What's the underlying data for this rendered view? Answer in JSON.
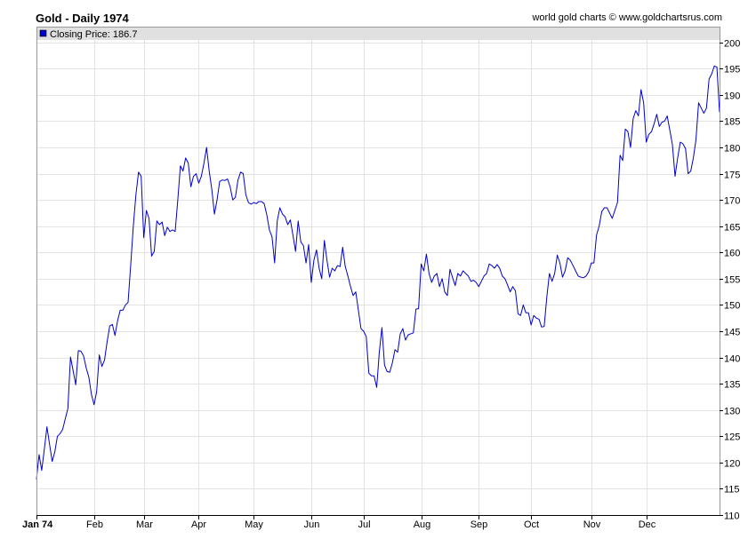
{
  "header": {
    "title": "Gold - Daily 1974",
    "credit": "world gold charts © www.goldchartsrus.com"
  },
  "colors": {
    "line": "#0000cc",
    "grid": "#e3e3e3",
    "legend_bg": "#e0e0e0"
  },
  "chart_data": {
    "type": "line",
    "legend": {
      "label": "Closing Price: 186.7",
      "placement": "top-left"
    },
    "ylim": [
      110,
      203
    ],
    "y_ticks": [
      110,
      115,
      120,
      125,
      130,
      135,
      140,
      145,
      150,
      155,
      160,
      165,
      170,
      175,
      180,
      185,
      190,
      195,
      200
    ],
    "x_ticks": [
      {
        "label": "Jan 74",
        "index": 0
      },
      {
        "label": "Feb",
        "index": 22
      },
      {
        "label": "Mar",
        "index": 41
      },
      {
        "label": "Apr",
        "index": 62
      },
      {
        "label": "May",
        "index": 83
      },
      {
        "label": "Jun",
        "index": 105
      },
      {
        "label": "Jul",
        "index": 125
      },
      {
        "label": "Aug",
        "index": 147
      },
      {
        "label": "Sep",
        "index": 169
      },
      {
        "label": "Oct",
        "index": 189
      },
      {
        "label": "Nov",
        "index": 212
      },
      {
        "label": "Dec",
        "index": 233
      }
    ],
    "series": [
      {
        "values": [
          116.8,
          121.5,
          118.5,
          122.5,
          126.8,
          123.5,
          120.2,
          122.0,
          125.0,
          125.5,
          126.3,
          128.3,
          130.3,
          140.1,
          137.5,
          134.8,
          141.3,
          141.2,
          140.3,
          138.0,
          136.3,
          133.0,
          131.0,
          133.5,
          140.5,
          138.3,
          139.5,
          143.0,
          146.0,
          146.3,
          144.2,
          147.0,
          149.0,
          149.0,
          150.0,
          150.5,
          157.5,
          165.0,
          171.0,
          175.3,
          174.5,
          162.8,
          168.0,
          166.5,
          159.3,
          160.2,
          166.0,
          165.3,
          165.8,
          163.2,
          164.8,
          164.0,
          164.3,
          164.0,
          170.0,
          176.5,
          175.5,
          178.0,
          177.0,
          172.5,
          174.5,
          175.0,
          173.2,
          174.5,
          177.0,
          180.0,
          175.5,
          172.0,
          167.3,
          170.0,
          173.5,
          173.8,
          173.7,
          174.0,
          172.5,
          170.0,
          170.5,
          173.8,
          175.3,
          175.0,
          171.0,
          169.5,
          169.2,
          169.5,
          169.3,
          169.7,
          169.7,
          169.3,
          167.2,
          164.3,
          163.0,
          158.0,
          166.0,
          168.5,
          167.3,
          166.8,
          165.3,
          166.2,
          163.3,
          160.2,
          166.0,
          162.0,
          161.3,
          158.0,
          161.5,
          154.3,
          158.5,
          160.5,
          157.0,
          155.0,
          162.3,
          158.5,
          155.3,
          157.0,
          156.5,
          157.5,
          157.3,
          161.0,
          157.3,
          155.5,
          153.5,
          151.8,
          152.5,
          149.0,
          145.5,
          145.0,
          144.0,
          137.0,
          136.5,
          136.5,
          134.3,
          141.0,
          145.7,
          138.5,
          137.3,
          137.2,
          139.0,
          141.5,
          141.0,
          144.5,
          145.5,
          143.3,
          144.3,
          144.5,
          144.7,
          149.2,
          149.3,
          157.8,
          156.5,
          159.7,
          156.0,
          154.3,
          155.5,
          156.0,
          153.5,
          155.0,
          152.5,
          151.8,
          156.8,
          155.2,
          153.7,
          156.0,
          155.5,
          156.5,
          156.0,
          155.5,
          154.5,
          154.7,
          154.3,
          153.5,
          154.5,
          155.5,
          156.0,
          157.8,
          157.5,
          157.0,
          157.7,
          157.0,
          155.5,
          155.0,
          153.8,
          152.5,
          153.5,
          152.7,
          148.3,
          148.0,
          150.0,
          148.5,
          148.5,
          146.2,
          148.0,
          147.5,
          147.3,
          145.8,
          145.9,
          151.5,
          156.0,
          154.5,
          156.0,
          159.5,
          158.0,
          155.3,
          156.5,
          159.0,
          158.5,
          157.5,
          156.5,
          155.5,
          155.3,
          155.2,
          155.5,
          156.3,
          158.0,
          158.0,
          163.3,
          165.0,
          167.8,
          168.5,
          168.5,
          167.5,
          166.5,
          168.0,
          169.5,
          178.5,
          177.5,
          183.5,
          183.0,
          180.0,
          185.5,
          187.0,
          186.0,
          191.0,
          188.5,
          181.0,
          182.5,
          183.0,
          184.5,
          186.3,
          184.0,
          184.8,
          185.0,
          186.0,
          183.3,
          180.5,
          174.5,
          178.0,
          181.0,
          180.7,
          179.8,
          175.0,
          175.5,
          178.0,
          181.5,
          188.5,
          187.5,
          186.5,
          187.5,
          193.0,
          194.0,
          195.5,
          195.3,
          186.7
        ]
      }
    ]
  }
}
